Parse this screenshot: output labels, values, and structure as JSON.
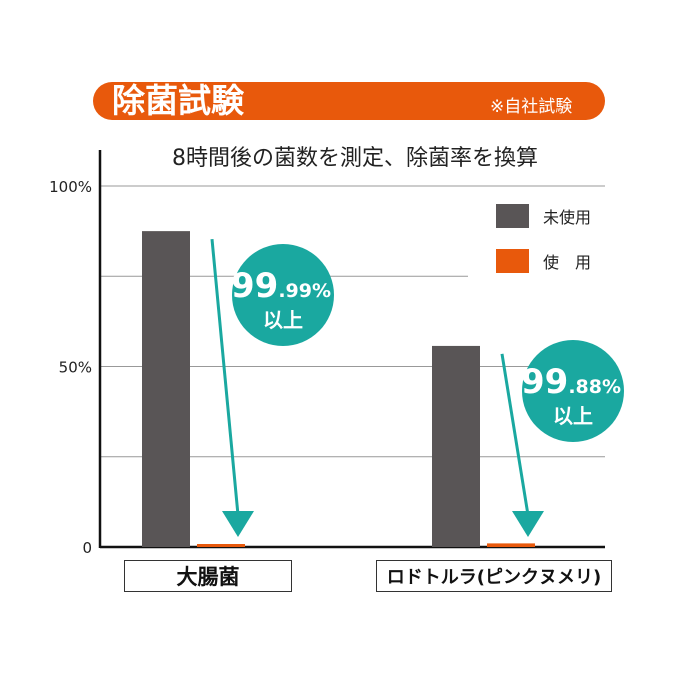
{
  "header": {
    "title": "除菌試験",
    "note": "※自社試験"
  },
  "chart_data": {
    "type": "bar",
    "title": "8時間後の菌数を測定、除菌率を換算",
    "categories": [
      "大腸菌",
      "ロドトルラ(ピンクヌメリ)"
    ],
    "series": [
      {
        "name": "未使用",
        "color": "#595556",
        "values": [
          87.5,
          55.7
        ]
      },
      {
        "name": "使　用",
        "color": "#e8590c",
        "values": [
          0.5,
          1.0
        ]
      }
    ],
    "ylim": [
      0,
      100
    ],
    "yticks": [
      {
        "value": 0,
        "label": "0"
      },
      {
        "value": 50,
        "label": "50%"
      },
      {
        "value": 100,
        "label": "100%"
      }
    ],
    "grid_values": [
      25,
      50,
      75,
      100
    ],
    "legend_position": "top-right",
    "annotations": [
      {
        "category": "大腸菌",
        "main": "99",
        "decimal": ".99%",
        "suffix": "以上"
      },
      {
        "category": "ロドトルラ(ピンクヌメリ)",
        "main": "99",
        "decimal": ".88%",
        "suffix": "以上"
      }
    ],
    "annotation_color": "#1aa8a0"
  }
}
